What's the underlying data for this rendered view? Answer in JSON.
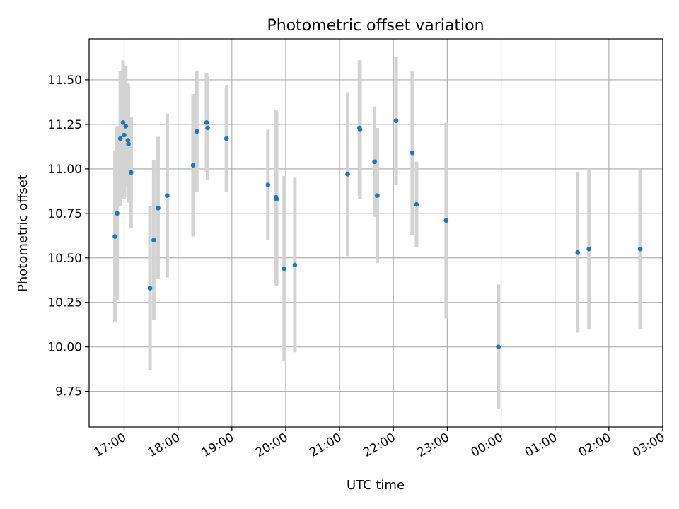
{
  "chart_data": {
    "type": "scatter",
    "title": "Photometric offset variation",
    "xlabel": "UTC time",
    "ylabel": "Photometric offset",
    "xlim_hours": [
      16.35,
      27.0
    ],
    "ylim": [
      9.55,
      11.73
    ],
    "x_ticks": [
      {
        "h": 17,
        "label": "17:00"
      },
      {
        "h": 18,
        "label": "18:00"
      },
      {
        "h": 19,
        "label": "19:00"
      },
      {
        "h": 20,
        "label": "20:00"
      },
      {
        "h": 21,
        "label": "21:00"
      },
      {
        "h": 22,
        "label": "22:00"
      },
      {
        "h": 23,
        "label": "23:00"
      },
      {
        "h": 24,
        "label": "00:00"
      },
      {
        "h": 25,
        "label": "01:00"
      },
      {
        "h": 26,
        "label": "02:00"
      },
      {
        "h": 27,
        "label": "03:00"
      }
    ],
    "y_ticks": [
      "9.75",
      "10.00",
      "10.25",
      "10.50",
      "10.75",
      "11.00",
      "11.25",
      "11.50"
    ],
    "grid": true,
    "point_color": "#1f77b4",
    "error_color": "#d3d3d3",
    "points": [
      {
        "x": 16.83,
        "y": 10.62,
        "err": 0.48
      },
      {
        "x": 16.87,
        "y": 10.75,
        "err": 0.49
      },
      {
        "x": 16.93,
        "y": 11.17,
        "err": 0.38
      },
      {
        "x": 16.98,
        "y": 11.26,
        "err": 0.35
      },
      {
        "x": 17.0,
        "y": 11.19,
        "err": 0.36
      },
      {
        "x": 17.03,
        "y": 11.24,
        "err": 0.34
      },
      {
        "x": 17.07,
        "y": 11.16,
        "err": 0.32
      },
      {
        "x": 17.08,
        "y": 11.14,
        "err": 0.33
      },
      {
        "x": 17.13,
        "y": 10.98,
        "err": 0.31
      },
      {
        "x": 17.48,
        "y": 10.33,
        "err": 0.46
      },
      {
        "x": 17.55,
        "y": 10.6,
        "err": 0.45
      },
      {
        "x": 17.63,
        "y": 10.78,
        "err": 0.4
      },
      {
        "x": 17.8,
        "y": 10.85,
        "err": 0.46
      },
      {
        "x": 18.28,
        "y": 11.02,
        "err": 0.4
      },
      {
        "x": 18.35,
        "y": 11.21,
        "err": 0.34
      },
      {
        "x": 18.53,
        "y": 11.26,
        "err": 0.28
      },
      {
        "x": 18.55,
        "y": 11.23,
        "err": 0.29
      },
      {
        "x": 18.9,
        "y": 11.17,
        "err": 0.3
      },
      {
        "x": 19.67,
        "y": 10.91,
        "err": 0.31
      },
      {
        "x": 19.82,
        "y": 10.84,
        "err": 0.49
      },
      {
        "x": 19.83,
        "y": 10.83,
        "err": 0.49
      },
      {
        "x": 19.97,
        "y": 10.44,
        "err": 0.52
      },
      {
        "x": 20.17,
        "y": 10.46,
        "err": 0.49
      },
      {
        "x": 21.15,
        "y": 10.97,
        "err": 0.46
      },
      {
        "x": 21.37,
        "y": 11.23,
        "err": 0.38
      },
      {
        "x": 21.38,
        "y": 11.22,
        "err": 0.39
      },
      {
        "x": 21.65,
        "y": 11.04,
        "err": 0.31
      },
      {
        "x": 21.7,
        "y": 10.85,
        "err": 0.38
      },
      {
        "x": 22.05,
        "y": 11.27,
        "err": 0.36
      },
      {
        "x": 22.35,
        "y": 11.09,
        "err": 0.46
      },
      {
        "x": 22.43,
        "y": 10.8,
        "err": 0.24
      },
      {
        "x": 22.98,
        "y": 10.71,
        "err": 0.55
      },
      {
        "x": 23.95,
        "y": 10.0,
        "err": 0.35
      },
      {
        "x": 25.42,
        "y": 10.53,
        "err": 0.45
      },
      {
        "x": 25.63,
        "y": 10.55,
        "err": 0.45
      },
      {
        "x": 26.58,
        "y": 10.55,
        "err": 0.45
      }
    ]
  }
}
